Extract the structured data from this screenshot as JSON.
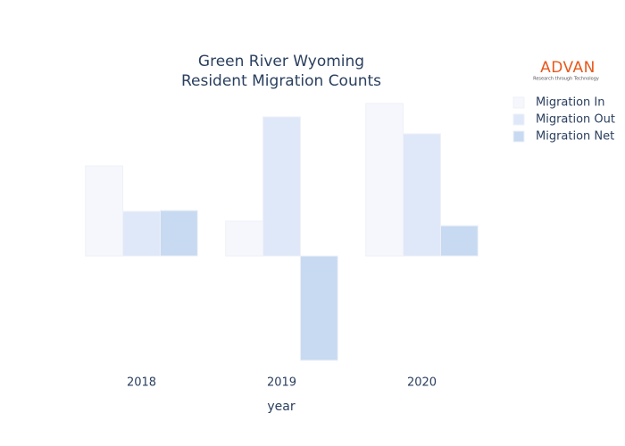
{
  "chart_data": {
    "type": "bar",
    "title": [
      "Green River Wyoming",
      "Resident Migration Counts"
    ],
    "logo": {
      "name": "ADVAN",
      "tagline": "Research through Technology"
    },
    "x_label": "year",
    "categories": [
      "2018",
      "2019",
      "2020"
    ],
    "series": [
      {
        "name": "Migration In",
        "color": "#f6f7fd",
        "values": [
          101,
          39,
          171
        ]
      },
      {
        "name": "Migration Out",
        "color": "#dfe8f8",
        "values": [
          50,
          156,
          137
        ]
      },
      {
        "name": "Migration Net",
        "color": "#c8daf1",
        "values": [
          51,
          -117,
          34
        ]
      }
    ],
    "ylim": [
      -130,
      180
    ],
    "grid": false
  }
}
